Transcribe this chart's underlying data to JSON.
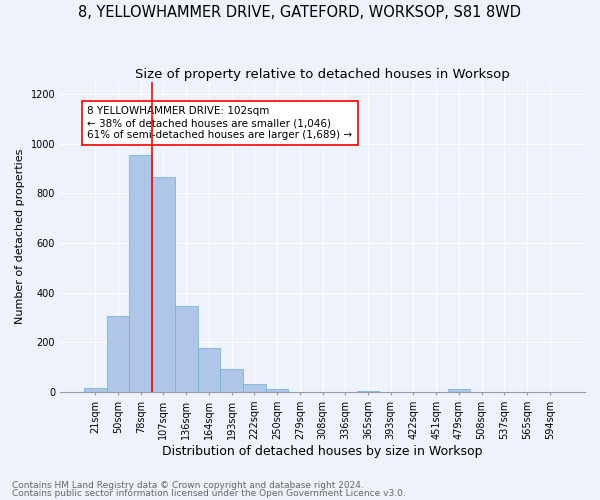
{
  "title": "8, YELLOWHAMMER DRIVE, GATEFORD, WORKSOP, S81 8WD",
  "subtitle": "Size of property relative to detached houses in Worksop",
  "xlabel": "Distribution of detached houses by size in Worksop",
  "ylabel": "Number of detached properties",
  "footnote1": "Contains HM Land Registry data © Crown copyright and database right 2024.",
  "footnote2": "Contains public sector information licensed under the Open Government Licence v3.0.",
  "bins": [
    "21sqm",
    "50sqm",
    "78sqm",
    "107sqm",
    "136sqm",
    "164sqm",
    "193sqm",
    "222sqm",
    "250sqm",
    "279sqm",
    "308sqm",
    "336sqm",
    "365sqm",
    "393sqm",
    "422sqm",
    "451sqm",
    "479sqm",
    "508sqm",
    "537sqm",
    "565sqm",
    "594sqm"
  ],
  "values": [
    15,
    305,
    955,
    865,
    345,
    175,
    90,
    30,
    10,
    0,
    0,
    0,
    5,
    0,
    0,
    0,
    10,
    0,
    0,
    0,
    0
  ],
  "bar_color": "#aec6e8",
  "bar_edge_color": "#6baed6",
  "red_line_bin_index": 3,
  "annotation_text": "8 YELLOWHAMMER DRIVE: 102sqm\n← 38% of detached houses are smaller (1,046)\n61% of semi-detached houses are larger (1,689) →",
  "annotation_box_color": "white",
  "annotation_box_edge_color": "red",
  "ylim": [
    0,
    1250
  ],
  "yticks": [
    0,
    200,
    400,
    600,
    800,
    1000,
    1200
  ],
  "background_color": "#eef2fb",
  "grid_color": "white",
  "title_fontsize": 10.5,
  "subtitle_fontsize": 9.5,
  "xlabel_fontsize": 9,
  "ylabel_fontsize": 8,
  "tick_fontsize": 7,
  "annotation_fontsize": 7.5,
  "footnote_fontsize": 6.5
}
